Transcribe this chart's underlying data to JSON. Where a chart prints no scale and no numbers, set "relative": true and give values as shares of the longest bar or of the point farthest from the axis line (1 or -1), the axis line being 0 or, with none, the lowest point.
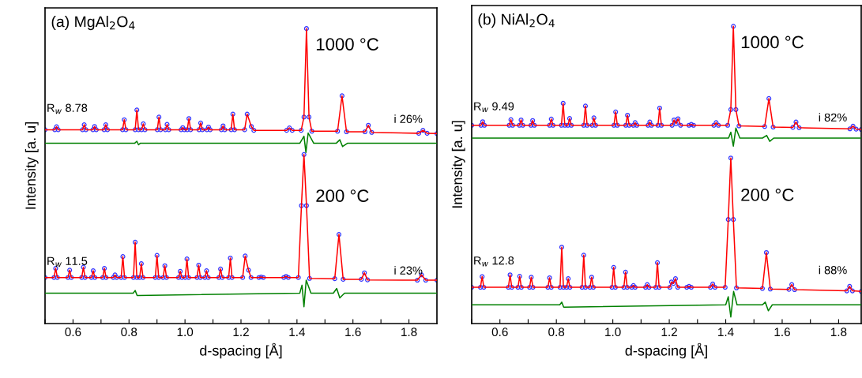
{
  "chart_data": [
    {
      "type": "line",
      "title": "(a) MgAl$_{2}$O$_{4}$",
      "xlabel": "d-spacing [Å]",
      "ylabel": "Intensity [a. u]",
      "relative": true,
      "xlim": [
        0.5,
        1.9
      ],
      "xticks": [
        {
          "value": 0.5,
          "label": null
        },
        0.6,
        {
          "value": 0.7,
          "label": null
        },
        0.8,
        {
          "value": 0.9,
          "label": null
        },
        {
          "value": 1.0,
          "label": "1.0"
        },
        {
          "value": 1.1,
          "label": null
        },
        1.2,
        {
          "value": 1.3,
          "label": null
        },
        1.4,
        {
          "value": 1.5,
          "label": null
        },
        1.6,
        {
          "value": 1.7,
          "label": null
        },
        1.8
      ],
      "tick_labels": "x",
      "grid": false,
      "legend": false,
      "annotations": [
        "1000 °C",
        "200 °C",
        "R$_{w}$ 8.78",
        "i 26%",
        "R$_{w}$ 11.5",
        "i 23%"
      ],
      "series": [
        {
          "type": "scatter",
          "marker": "circle",
          "color": "#3333ff",
          "x": [
            0.5,
            0.535,
            0.541,
            0.547,
            0.634,
            0.64,
            0.646,
            0.671,
            0.677,
            0.683,
            0.711,
            0.717,
            0.723,
            0.777,
            0.783,
            0.789,
            0.822,
            0.828,
            0.834,
            0.845,
            0.851,
            0.857,
            0.901,
            0.907,
            0.913,
            0.93,
            0.936,
            0.942,
            0.986,
            0.992,
            0.998,
            1.008,
            1.014,
            1.02,
            1.05,
            1.056,
            1.062,
            1.078,
            1.084,
            1.09,
            1.13,
            1.136,
            1.142,
            1.165,
            1.171,
            1.177,
            1.213,
            1.222,
            1.237,
            1.246,
            1.363,
            1.373,
            1.383,
            1.415,
            1.425,
            1.434,
            1.443,
            1.453,
            1.545,
            1.561,
            1.577,
            1.643,
            1.655,
            1.667,
            1.835,
            1.85,
            1.865,
            1.9
          ],
          "values": [
            0.657,
            0.657,
            0.667,
            0.657,
            0.657,
            0.674,
            0.657,
            0.657,
            0.668,
            0.657,
            0.657,
            0.674,
            0.657,
            0.657,
            0.691,
            0.657,
            0.657,
            0.724,
            0.657,
            0.657,
            0.677,
            0.657,
            0.657,
            0.7,
            0.657,
            0.657,
            0.675,
            0.657,
            0.657,
            0.664,
            0.657,
            0.657,
            0.695,
            0.657,
            0.657,
            0.68,
            0.657,
            0.657,
            0.666,
            0.657,
            0.657,
            0.67,
            0.657,
            0.657,
            0.71,
            0.657,
            0.657,
            0.71,
            0.668,
            0.655,
            0.655,
            0.663,
            0.655,
            0.655,
            0.7,
            1.0,
            0.7,
            0.652,
            0.652,
            0.772,
            0.65,
            0.65,
            0.672,
            0.648,
            0.645,
            0.655,
            0.645,
            0.644
          ]
        },
        {
          "color": "#ff0000",
          "x": [
            0.5,
            0.535,
            0.541,
            0.547,
            0.634,
            0.64,
            0.646,
            0.671,
            0.677,
            0.683,
            0.711,
            0.717,
            0.723,
            0.777,
            0.783,
            0.789,
            0.822,
            0.828,
            0.834,
            0.845,
            0.851,
            0.857,
            0.901,
            0.907,
            0.913,
            0.93,
            0.936,
            0.942,
            0.986,
            0.992,
            0.998,
            1.008,
            1.014,
            1.02,
            1.05,
            1.056,
            1.062,
            1.078,
            1.084,
            1.09,
            1.13,
            1.136,
            1.142,
            1.165,
            1.171,
            1.177,
            1.213,
            1.222,
            1.237,
            1.246,
            1.363,
            1.373,
            1.383,
            1.415,
            1.425,
            1.434,
            1.443,
            1.453,
            1.545,
            1.561,
            1.577,
            1.643,
            1.655,
            1.667,
            1.835,
            1.85,
            1.865,
            1.9
          ],
          "values": [
            0.657,
            0.657,
            0.667,
            0.657,
            0.657,
            0.674,
            0.657,
            0.657,
            0.668,
            0.657,
            0.657,
            0.674,
            0.657,
            0.657,
            0.691,
            0.657,
            0.657,
            0.724,
            0.657,
            0.657,
            0.677,
            0.657,
            0.657,
            0.7,
            0.657,
            0.657,
            0.675,
            0.657,
            0.657,
            0.664,
            0.657,
            0.657,
            0.695,
            0.657,
            0.657,
            0.68,
            0.657,
            0.657,
            0.666,
            0.657,
            0.657,
            0.67,
            0.657,
            0.657,
            0.71,
            0.657,
            0.657,
            0.71,
            0.668,
            0.655,
            0.655,
            0.663,
            0.655,
            0.655,
            0.7,
            1.0,
            0.7,
            0.652,
            0.652,
            0.772,
            0.65,
            0.65,
            0.672,
            0.648,
            0.645,
            0.655,
            0.645,
            0.644
          ]
        },
        {
          "color": "#008000",
          "x": [
            0.5,
            0.82,
            0.828,
            0.834,
            0.84,
            1.41,
            1.425,
            1.432,
            1.44,
            1.46,
            1.54,
            1.553,
            1.563,
            1.58,
            1.9
          ],
          "values": [
            0.611,
            0.611,
            0.618,
            0.606,
            0.611,
            0.611,
            0.635,
            0.58,
            0.646,
            0.611,
            0.611,
            0.623,
            0.6,
            0.611,
            0.611
          ]
        },
        {
          "type": "scatter",
          "marker": "circle",
          "color": "#3333ff",
          "x": [
            0.5,
            0.532,
            0.538,
            0.544,
            0.582,
            0.588,
            0.594,
            0.631,
            0.637,
            0.643,
            0.666,
            0.672,
            0.678,
            0.706,
            0.712,
            0.718,
            0.744,
            0.75,
            0.756,
            0.772,
            0.778,
            0.784,
            0.816,
            0.822,
            0.828,
            0.838,
            0.844,
            0.85,
            0.894,
            0.9,
            0.906,
            0.922,
            0.928,
            0.934,
            0.977,
            0.983,
            0.989,
            1.001,
            1.007,
            1.013,
            1.043,
            1.049,
            1.055,
            1.071,
            1.077,
            1.083,
            1.121,
            1.127,
            1.133,
            1.156,
            1.162,
            1.168,
            1.206,
            1.215,
            1.227,
            1.236,
            1.264,
            1.272,
            1.28,
            1.353,
            1.361,
            1.369,
            1.405,
            1.416,
            1.425,
            1.434,
            1.445,
            1.535,
            1.55,
            1.565,
            1.63,
            1.641,
            1.652,
            1.83,
            1.845,
            1.86,
            1.9
          ],
          "values": [
            0.156,
            0.156,
            0.187,
            0.156,
            0.156,
            0.181,
            0.156,
            0.156,
            0.191,
            0.156,
            0.156,
            0.179,
            0.156,
            0.156,
            0.187,
            0.156,
            0.156,
            0.165,
            0.156,
            0.156,
            0.227,
            0.156,
            0.156,
            0.276,
            0.156,
            0.156,
            0.203,
            0.156,
            0.156,
            0.231,
            0.156,
            0.156,
            0.196,
            0.156,
            0.156,
            0.177,
            0.156,
            0.156,
            0.219,
            0.156,
            0.156,
            0.198,
            0.156,
            0.156,
            0.179,
            0.156,
            0.156,
            0.185,
            0.156,
            0.156,
            0.222,
            0.156,
            0.156,
            0.229,
            0.181,
            0.156,
            0.156,
            0.158,
            0.156,
            0.156,
            0.16,
            0.156,
            0.156,
            0.4,
            0.573,
            0.4,
            0.153,
            0.152,
            0.302,
            0.15,
            0.15,
            0.172,
            0.148,
            0.147,
            0.165,
            0.147,
            0.147
          ]
        },
        {
          "color": "#ff0000",
          "x": [
            0.5,
            0.532,
            0.538,
            0.544,
            0.582,
            0.588,
            0.594,
            0.631,
            0.637,
            0.643,
            0.666,
            0.672,
            0.678,
            0.706,
            0.712,
            0.718,
            0.744,
            0.75,
            0.756,
            0.772,
            0.778,
            0.784,
            0.816,
            0.822,
            0.828,
            0.838,
            0.844,
            0.85,
            0.894,
            0.9,
            0.906,
            0.922,
            0.928,
            0.934,
            0.977,
            0.983,
            0.989,
            1.001,
            1.007,
            1.013,
            1.043,
            1.049,
            1.055,
            1.071,
            1.077,
            1.083,
            1.121,
            1.127,
            1.133,
            1.156,
            1.162,
            1.168,
            1.206,
            1.215,
            1.227,
            1.236,
            1.264,
            1.272,
            1.28,
            1.353,
            1.361,
            1.369,
            1.405,
            1.416,
            1.425,
            1.434,
            1.445,
            1.535,
            1.55,
            1.565,
            1.63,
            1.641,
            1.652,
            1.83,
            1.845,
            1.86,
            1.9
          ],
          "values": [
            0.156,
            0.156,
            0.187,
            0.156,
            0.156,
            0.181,
            0.156,
            0.156,
            0.191,
            0.156,
            0.156,
            0.179,
            0.156,
            0.156,
            0.187,
            0.156,
            0.156,
            0.165,
            0.156,
            0.156,
            0.227,
            0.156,
            0.156,
            0.276,
            0.156,
            0.156,
            0.203,
            0.156,
            0.156,
            0.231,
            0.156,
            0.156,
            0.196,
            0.156,
            0.156,
            0.177,
            0.156,
            0.156,
            0.219,
            0.156,
            0.156,
            0.198,
            0.156,
            0.156,
            0.179,
            0.156,
            0.156,
            0.185,
            0.156,
            0.156,
            0.222,
            0.156,
            0.156,
            0.229,
            0.181,
            0.156,
            0.156,
            0.158,
            0.156,
            0.156,
            0.16,
            0.156,
            0.156,
            0.4,
            0.573,
            0.4,
            0.153,
            0.152,
            0.302,
            0.15,
            0.15,
            0.172,
            0.148,
            0.147,
            0.165,
            0.147,
            0.147
          ]
        },
        {
          "color": "#008000",
          "x": [
            0.5,
            0.815,
            0.822,
            0.829,
            1.41,
            1.418,
            1.425,
            1.433,
            1.45,
            1.53,
            1.542,
            1.553,
            1.57,
            1.9
          ],
          "values": [
            0.103,
            0.103,
            0.112,
            0.095,
            0.103,
            0.13,
            0.057,
            0.147,
            0.103,
            0.103,
            0.119,
            0.087,
            0.103,
            0.103
          ]
        }
      ]
    },
    {
      "type": "line",
      "title": "(b) NiAl$_{2}$O$_{4}$",
      "xlabel": "d-spacing [Å]",
      "ylabel": "Intensity [a. u]",
      "relative": true,
      "xlim": [
        0.5,
        1.88
      ],
      "xticks": [
        {
          "value": 0.5,
          "label": null
        },
        0.6,
        {
          "value": 0.7,
          "label": null
        },
        0.8,
        {
          "value": 0.9,
          "label": null
        },
        {
          "value": 1.0,
          "label": "1.0"
        },
        {
          "value": 1.1,
          "label": null
        },
        1.2,
        {
          "value": 1.3,
          "label": null
        },
        1.4,
        {
          "value": 1.5,
          "label": null
        },
        1.6,
        {
          "value": 1.7,
          "label": null
        },
        1.8
      ],
      "tick_labels": "x",
      "grid": false,
      "legend": false,
      "annotations": [
        "1000 °C",
        "200 °C",
        "R$_{w}$ 9.49",
        "i 82%",
        "R$_{w}$ 12.8",
        "i 88%"
      ],
      "series": [
        {
          "type": "scatter",
          "marker": "circle",
          "color": "#3333ff",
          "x": [
            0.5,
            0.533,
            0.539,
            0.545,
            0.633,
            0.639,
            0.645,
            0.669,
            0.675,
            0.681,
            0.71,
            0.716,
            0.722,
            0.776,
            0.782,
            0.788,
            0.818,
            0.824,
            0.83,
            0.841,
            0.847,
            0.853,
            0.897,
            0.903,
            0.909,
            0.927,
            0.933,
            0.939,
            1.004,
            1.01,
            1.016,
            1.046,
            1.052,
            1.058,
            1.073,
            1.079,
            1.085,
            1.125,
            1.131,
            1.137,
            1.16,
            1.166,
            1.172,
            1.21,
            1.217,
            1.224,
            1.231,
            1.24,
            1.27,
            1.278,
            1.286,
            1.358,
            1.366,
            1.374,
            1.407,
            1.418,
            1.427,
            1.436,
            1.447,
            1.538,
            1.553,
            1.568,
            1.638,
            1.649,
            1.66,
            1.84,
            1.851,
            1.862,
            1.88
          ],
          "values": [
            0.667,
            0.667,
            0.679,
            0.667,
            0.667,
            0.686,
            0.667,
            0.667,
            0.685,
            0.667,
            0.667,
            0.683,
            0.667,
            0.667,
            0.688,
            0.667,
            0.667,
            0.741,
            0.667,
            0.667,
            0.69,
            0.667,
            0.667,
            0.732,
            0.667,
            0.667,
            0.692,
            0.667,
            0.667,
            0.712,
            0.667,
            0.667,
            0.701,
            0.667,
            0.667,
            0.676,
            0.667,
            0.667,
            0.678,
            0.667,
            0.667,
            0.725,
            0.667,
            0.667,
            0.685,
            0.672,
            0.689,
            0.667,
            0.667,
            0.67,
            0.667,
            0.667,
            0.676,
            0.667,
            0.667,
            0.72,
            1.0,
            0.72,
            0.665,
            0.663,
            0.757,
            0.661,
            0.66,
            0.678,
            0.659,
            0.655,
            0.664,
            0.654,
            0.653
          ]
        },
        {
          "color": "#ff0000",
          "x": [
            0.5,
            0.533,
            0.539,
            0.545,
            0.633,
            0.639,
            0.645,
            0.669,
            0.675,
            0.681,
            0.71,
            0.716,
            0.722,
            0.776,
            0.782,
            0.788,
            0.818,
            0.824,
            0.83,
            0.841,
            0.847,
            0.853,
            0.897,
            0.903,
            0.909,
            0.927,
            0.933,
            0.939,
            1.004,
            1.01,
            1.016,
            1.046,
            1.052,
            1.058,
            1.073,
            1.079,
            1.085,
            1.125,
            1.131,
            1.137,
            1.16,
            1.166,
            1.172,
            1.21,
            1.217,
            1.224,
            1.231,
            1.24,
            1.27,
            1.278,
            1.286,
            1.358,
            1.366,
            1.374,
            1.407,
            1.418,
            1.427,
            1.436,
            1.447,
            1.538,
            1.553,
            1.568,
            1.638,
            1.649,
            1.66,
            1.84,
            1.851,
            1.862,
            1.88
          ],
          "values": [
            0.667,
            0.667,
            0.679,
            0.667,
            0.667,
            0.686,
            0.667,
            0.667,
            0.685,
            0.667,
            0.667,
            0.683,
            0.667,
            0.667,
            0.688,
            0.667,
            0.667,
            0.741,
            0.667,
            0.667,
            0.69,
            0.667,
            0.667,
            0.732,
            0.667,
            0.667,
            0.692,
            0.667,
            0.667,
            0.712,
            0.667,
            0.667,
            0.701,
            0.667,
            0.667,
            0.676,
            0.667,
            0.667,
            0.678,
            0.667,
            0.667,
            0.725,
            0.667,
            0.667,
            0.685,
            0.672,
            0.689,
            0.667,
            0.667,
            0.67,
            0.667,
            0.667,
            0.676,
            0.667,
            0.667,
            0.72,
            1.0,
            0.72,
            0.665,
            0.663,
            0.757,
            0.661,
            0.66,
            0.678,
            0.659,
            0.655,
            0.664,
            0.654,
            0.653
          ]
        },
        {
          "color": "#008000",
          "x": [
            0.5,
            1.41,
            1.418,
            1.427,
            1.436,
            1.45,
            1.53,
            1.545,
            1.556,
            1.57,
            1.88
          ],
          "values": [
            0.624,
            0.624,
            0.644,
            0.597,
            0.658,
            0.624,
            0.624,
            0.633,
            0.613,
            0.624,
            0.624
          ]
        },
        {
          "type": "scatter",
          "marker": "circle",
          "color": "#3333ff",
          "x": [
            0.5,
            0.531,
            0.537,
            0.543,
            0.63,
            0.636,
            0.642,
            0.664,
            0.67,
            0.676,
            0.705,
            0.711,
            0.717,
            0.77,
            0.776,
            0.782,
            0.813,
            0.819,
            0.825,
            0.836,
            0.842,
            0.848,
            0.891,
            0.897,
            0.903,
            0.919,
            0.925,
            0.931,
            0.997,
            1.003,
            1.009,
            1.039,
            1.045,
            1.051,
            1.067,
            1.073,
            1.079,
            1.116,
            1.122,
            1.128,
            1.152,
            1.158,
            1.164,
            1.202,
            1.208,
            1.215,
            1.222,
            1.23,
            1.262,
            1.27,
            1.278,
            1.346,
            1.354,
            1.362,
            1.398,
            1.409,
            1.418,
            1.427,
            1.438,
            1.53,
            1.544,
            1.558,
            1.624,
            1.634,
            1.644,
            1.829,
            1.839,
            1.849,
            1.88
          ],
          "values": [
            0.122,
            0.122,
            0.158,
            0.122,
            0.122,
            0.164,
            0.122,
            0.122,
            0.159,
            0.122,
            0.122,
            0.156,
            0.122,
            0.122,
            0.154,
            0.122,
            0.122,
            0.257,
            0.122,
            0.122,
            0.151,
            0.122,
            0.122,
            0.23,
            0.122,
            0.122,
            0.156,
            0.122,
            0.122,
            0.189,
            0.122,
            0.122,
            0.173,
            0.122,
            0.122,
            0.128,
            0.122,
            0.122,
            0.131,
            0.122,
            0.122,
            0.205,
            0.122,
            0.122,
            0.14,
            0.135,
            0.151,
            0.122,
            0.122,
            0.125,
            0.122,
            0.122,
            0.133,
            0.122,
            0.122,
            0.35,
            0.557,
            0.35,
            0.12,
            0.118,
            0.239,
            0.116,
            0.115,
            0.131,
            0.114,
            0.11,
            0.125,
            0.11,
            0.108
          ]
        },
        {
          "color": "#ff0000",
          "x": [
            0.5,
            0.531,
            0.537,
            0.543,
            0.63,
            0.636,
            0.642,
            0.664,
            0.67,
            0.676,
            0.705,
            0.711,
            0.717,
            0.77,
            0.776,
            0.782,
            0.813,
            0.819,
            0.825,
            0.836,
            0.842,
            0.848,
            0.891,
            0.897,
            0.903,
            0.919,
            0.925,
            0.931,
            0.997,
            1.003,
            1.009,
            1.039,
            1.045,
            1.051,
            1.067,
            1.073,
            1.079,
            1.116,
            1.122,
            1.128,
            1.152,
            1.158,
            1.164,
            1.202,
            1.208,
            1.215,
            1.222,
            1.23,
            1.262,
            1.27,
            1.278,
            1.346,
            1.354,
            1.362,
            1.398,
            1.409,
            1.418,
            1.427,
            1.438,
            1.53,
            1.544,
            1.558,
            1.624,
            1.634,
            1.644,
            1.829,
            1.839,
            1.849,
            1.88
          ],
          "values": [
            0.122,
            0.122,
            0.158,
            0.122,
            0.122,
            0.164,
            0.122,
            0.122,
            0.159,
            0.122,
            0.122,
            0.156,
            0.122,
            0.122,
            0.154,
            0.122,
            0.122,
            0.257,
            0.122,
            0.122,
            0.151,
            0.122,
            0.122,
            0.23,
            0.122,
            0.122,
            0.156,
            0.122,
            0.122,
            0.189,
            0.122,
            0.122,
            0.173,
            0.122,
            0.122,
            0.128,
            0.122,
            0.122,
            0.131,
            0.122,
            0.122,
            0.205,
            0.122,
            0.122,
            0.14,
            0.135,
            0.151,
            0.122,
            0.122,
            0.125,
            0.122,
            0.122,
            0.133,
            0.122,
            0.122,
            0.35,
            0.557,
            0.35,
            0.12,
            0.118,
            0.239,
            0.116,
            0.115,
            0.131,
            0.114,
            0.11,
            0.125,
            0.11,
            0.108
          ]
        },
        {
          "color": "#008000",
          "x": [
            0.5,
            0.812,
            0.819,
            0.826,
            1.4,
            1.409,
            1.418,
            1.428,
            1.44,
            1.53,
            1.54,
            1.551,
            1.565,
            1.88
          ],
          "values": [
            0.063,
            0.063,
            0.072,
            0.055,
            0.063,
            0.09,
            0.022,
            0.108,
            0.063,
            0.063,
            0.072,
            0.043,
            0.063,
            0.063
          ]
        }
      ]
    }
  ]
}
